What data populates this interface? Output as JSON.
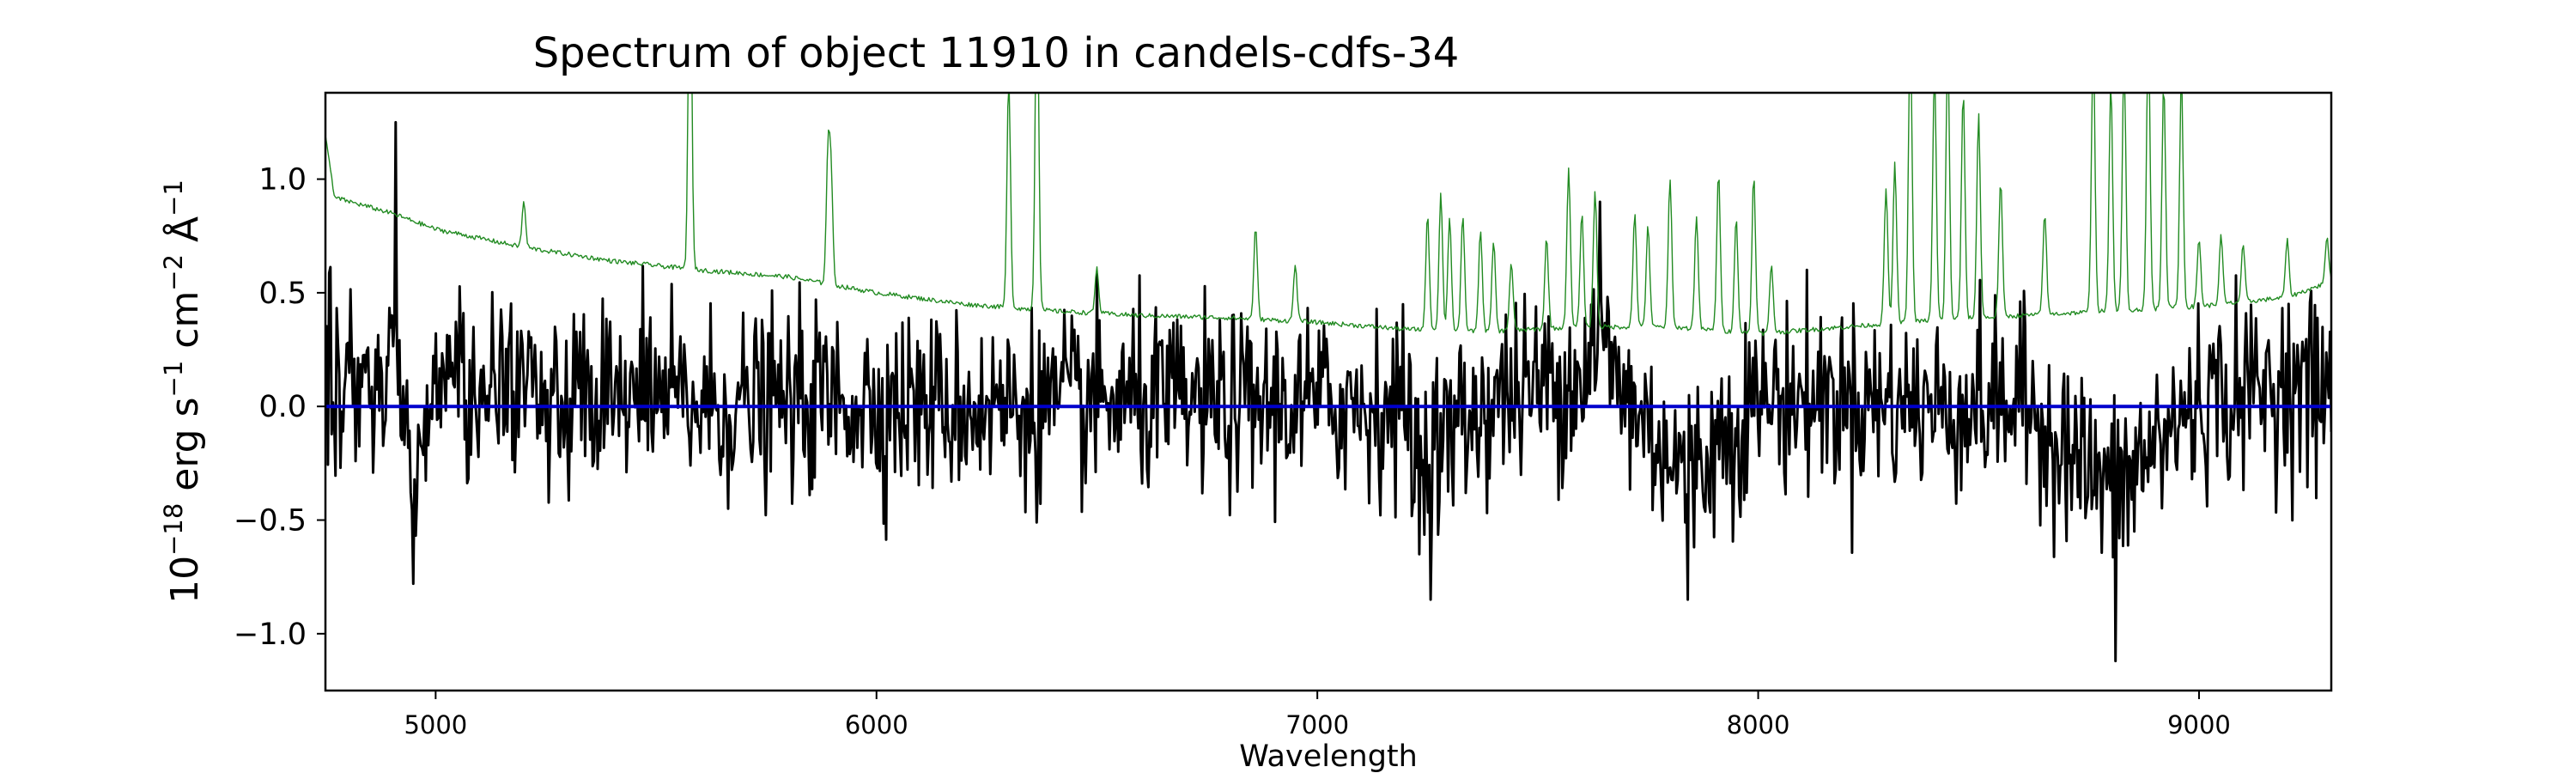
{
  "chart_data": {
    "type": "line",
    "title": "Spectrum of object 11910 in candels-cdfs-34",
    "xlabel": "Wavelength",
    "ylabel_base": "10",
    "ylabel_exp": "−18",
    "ylabel_rest": " erg s",
    "ylabel_s_exp": "−1",
    "ylabel_cm": " cm",
    "ylabel_cm_exp": "−2",
    "ylabel_ang": " Å",
    "ylabel_ang_exp": "−1",
    "xlim": [
      4750,
      9300
    ],
    "ylim": [
      -1.25,
      1.38
    ],
    "x_ticks": [
      5000,
      6000,
      7000,
      8000,
      9000
    ],
    "x_tick_labels": [
      "5000",
      "6000",
      "7000",
      "8000",
      "9000"
    ],
    "y_ticks": [
      -1.0,
      -0.5,
      0.0,
      0.5,
      1.0
    ],
    "y_tick_labels": [
      "−1.0",
      "−0.5",
      "0.0",
      "0.5",
      "1.0"
    ],
    "grid": false,
    "series": [
      {
        "role": "flux",
        "color": "#000000",
        "x_start": 4750,
        "x_end": 9300,
        "n_points": 1600,
        "anchors": [
          [
            4750,
            0.05
          ],
          [
            4800,
            0.15
          ],
          [
            4880,
            0.3
          ],
          [
            4910,
            1.25
          ],
          [
            4930,
            -0.3
          ],
          [
            4950,
            -0.78
          ],
          [
            5000,
            0.3
          ],
          [
            5100,
            0.35
          ],
          [
            5200,
            0.25
          ],
          [
            5300,
            0.05
          ],
          [
            5400,
            0.0
          ],
          [
            5500,
            0.1
          ],
          [
            5600,
            0.0
          ],
          [
            5700,
            0.0
          ],
          [
            5800,
            0.05
          ],
          [
            5900,
            0.1
          ],
          [
            6000,
            0.05
          ],
          [
            6200,
            0.0
          ],
          [
            6400,
            0.0
          ],
          [
            6600,
            0.05
          ],
          [
            6800,
            0.0
          ],
          [
            7000,
            0.05
          ],
          [
            7200,
            0.0
          ],
          [
            7230,
            -0.65
          ],
          [
            7400,
            0.1
          ],
          [
            7600,
            0.4
          ],
          [
            7640,
            0.9
          ],
          [
            7700,
            0.1
          ],
          [
            7840,
            -0.85
          ],
          [
            8000,
            0.1
          ],
          [
            8200,
            0.1
          ],
          [
            8400,
            0.0
          ],
          [
            8600,
            0.05
          ],
          [
            8810,
            -1.12
          ],
          [
            8900,
            -0.5
          ],
          [
            9000,
            0.1
          ],
          [
            9100,
            0.15
          ],
          [
            9200,
            0.3
          ],
          [
            9300,
            0.2
          ]
        ],
        "noise_scale": 0.2
      },
      {
        "role": "error",
        "color": "#228b22",
        "x_start": 4750,
        "x_end": 9300,
        "n_points": 1600,
        "continuum": [
          [
            4750,
            1.2
          ],
          [
            4770,
            0.92
          ],
          [
            4900,
            0.85
          ],
          [
            5000,
            0.78
          ],
          [
            5200,
            0.7
          ],
          [
            5400,
            0.64
          ],
          [
            5600,
            0.6
          ],
          [
            5800,
            0.57
          ],
          [
            6000,
            0.5
          ],
          [
            6200,
            0.45
          ],
          [
            6400,
            0.42
          ],
          [
            6600,
            0.4
          ],
          [
            6800,
            0.39
          ],
          [
            7000,
            0.37
          ],
          [
            7200,
            0.34
          ],
          [
            7400,
            0.33
          ],
          [
            7600,
            0.35
          ],
          [
            7800,
            0.35
          ],
          [
            8000,
            0.32
          ],
          [
            8200,
            0.35
          ],
          [
            8400,
            0.38
          ],
          [
            8600,
            0.4
          ],
          [
            8800,
            0.42
          ],
          [
            9000,
            0.44
          ],
          [
            9200,
            0.48
          ],
          [
            9300,
            0.55
          ]
        ],
        "lines": [
          [
            5200,
            0.2
          ],
          [
            5577,
            1.5
          ],
          [
            5890,
            0.55
          ],
          [
            5897,
            0.45
          ],
          [
            6300,
            1.0
          ],
          [
            6364,
            1.5
          ],
          [
            6500,
            0.2
          ],
          [
            6860,
            0.4
          ],
          [
            6950,
            0.25
          ],
          [
            7250,
            0.5
          ],
          [
            7280,
            0.6
          ],
          [
            7300,
            0.5
          ],
          [
            7330,
            0.5
          ],
          [
            7370,
            0.45
          ],
          [
            7400,
            0.4
          ],
          [
            7440,
            0.3
          ],
          [
            7520,
            0.4
          ],
          [
            7570,
            0.7
          ],
          [
            7600,
            0.5
          ],
          [
            7630,
            0.6
          ],
          [
            7720,
            0.5
          ],
          [
            7750,
            0.45
          ],
          [
            7800,
            0.65
          ],
          [
            7860,
            0.5
          ],
          [
            7910,
            0.7
          ],
          [
            7950,
            0.5
          ],
          [
            7990,
            0.7
          ],
          [
            8030,
            0.3
          ],
          [
            8290,
            0.6
          ],
          [
            8310,
            0.7
          ],
          [
            8345,
            1.3
          ],
          [
            8400,
            1.1
          ],
          [
            8430,
            1.2
          ],
          [
            8465,
            1.0
          ],
          [
            8500,
            0.9
          ],
          [
            8550,
            0.6
          ],
          [
            8650,
            0.45
          ],
          [
            8760,
            1.2
          ],
          [
            8800,
            1.0
          ],
          [
            8830,
            1.1
          ],
          [
            8885,
            1.2
          ],
          [
            8920,
            1.0
          ],
          [
            8960,
            1.0
          ],
          [
            9000,
            0.3
          ],
          [
            9050,
            0.3
          ],
          [
            9100,
            0.25
          ],
          [
            9200,
            0.25
          ],
          [
            9290,
            0.2
          ]
        ]
      },
      {
        "role": "model",
        "color": "#0000cd",
        "x": [
          4750,
          9300
        ],
        "y": [
          0.0,
          0.0
        ]
      }
    ]
  }
}
